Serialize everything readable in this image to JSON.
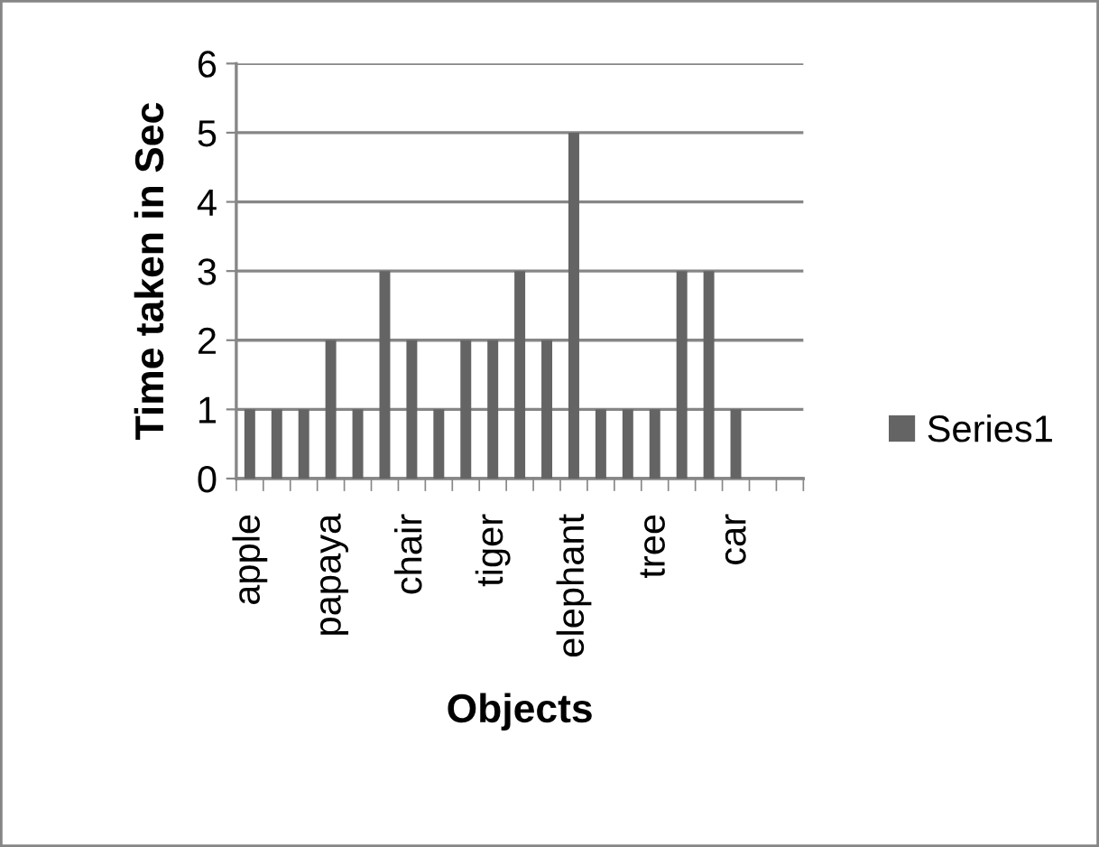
{
  "chart_data": {
    "type": "bar",
    "xlabel": "Objects",
    "ylabel": "Time taken in Sec",
    "categories": [
      "apple",
      null,
      null,
      "papaya",
      null,
      null,
      "chair",
      null,
      null,
      "tiger",
      null,
      null,
      "elephant",
      null,
      null,
      "tree",
      null,
      null,
      "car",
      null,
      null
    ],
    "series": [
      {
        "name": "Series1",
        "color": "#646464",
        "values": [
          1,
          1,
          1,
          2,
          1,
          3,
          2,
          1,
          2,
          2,
          3,
          2,
          5,
          1,
          1,
          1,
          3,
          3,
          1,
          null,
          null
        ]
      }
    ],
    "ylim": [
      0,
      6
    ],
    "yticks": [
      0,
      1,
      2,
      3,
      4,
      5,
      6
    ],
    "grid": "y",
    "legend": "right"
  }
}
